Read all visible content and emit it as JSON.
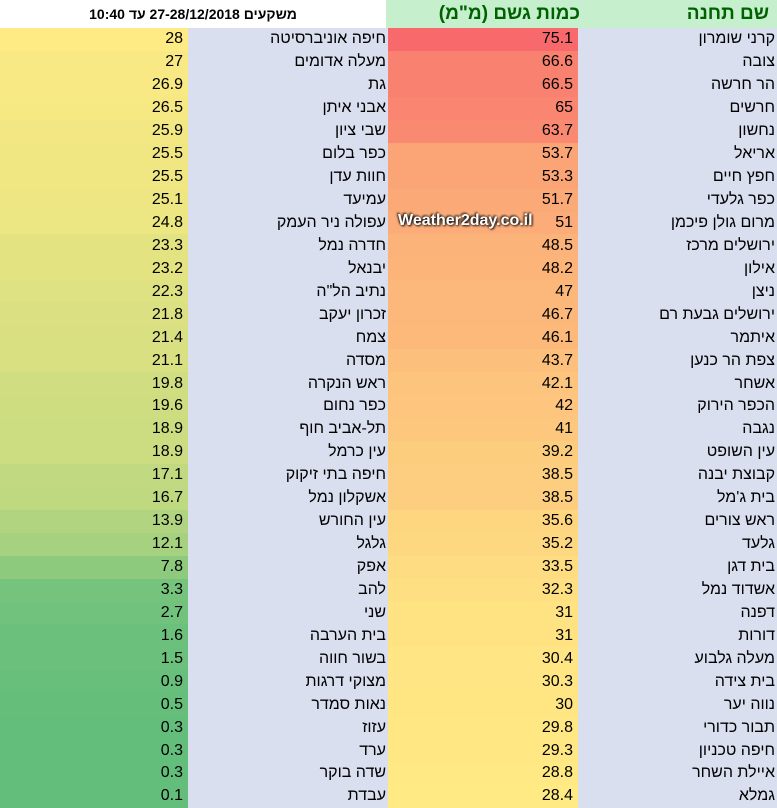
{
  "title": "משקעים 27-28/12/2018 עד 10:40",
  "header": {
    "station": "שם תחנה",
    "rain": "כמות גשם (מ\"מ)"
  },
  "watermark": "Weather2day.co.il",
  "colors": {
    "high": "#f8696b",
    "mid": "#ffeb84",
    "low": "#63be7b",
    "header_bg": "#c6efce",
    "header_text": "#006100",
    "name_bg": "#dadff0"
  },
  "right_table": [
    {
      "name": "קרני שומרון",
      "value": 75.1
    },
    {
      "name": "צובה",
      "value": 66.6
    },
    {
      "name": "הר חרשה",
      "value": 66.5
    },
    {
      "name": "חרשים",
      "value": 65
    },
    {
      "name": "נחשון",
      "value": 63.7
    },
    {
      "name": "אריאל",
      "value": 53.7
    },
    {
      "name": "חפץ חיים",
      "value": 53.3
    },
    {
      "name": "כפר גלעדי",
      "value": 51.7
    },
    {
      "name": "מרום גולן פיכמן",
      "value": 51
    },
    {
      "name": "ירושלים מרכז",
      "value": 48.5
    },
    {
      "name": "אילון",
      "value": 48.2
    },
    {
      "name": "ניצן",
      "value": 47
    },
    {
      "name": "ירושלים גבעת רם",
      "value": 46.7
    },
    {
      "name": "איתמר",
      "value": 46.1
    },
    {
      "name": "צפת הר כנען",
      "value": 43.7
    },
    {
      "name": "אשחר",
      "value": 42.1
    },
    {
      "name": "הכפר הירוק",
      "value": 42
    },
    {
      "name": "נגבה",
      "value": 41
    },
    {
      "name": "עין השופט",
      "value": 39.2
    },
    {
      "name": "קבוצת יבנה",
      "value": 38.5
    },
    {
      "name": "בית ג'מל",
      "value": 38.5
    },
    {
      "name": "ראש צורים",
      "value": 35.6
    },
    {
      "name": "גלעד",
      "value": 35.2
    },
    {
      "name": "בית דגן",
      "value": 33.5
    },
    {
      "name": "אשדוד נמל",
      "value": 32.3
    },
    {
      "name": "דפנה",
      "value": 31
    },
    {
      "name": "דורות",
      "value": 31
    },
    {
      "name": "מעלה גלבוע",
      "value": 30.4
    },
    {
      "name": "בית צידה",
      "value": 30.3
    },
    {
      "name": "נווה יער",
      "value": 30
    },
    {
      "name": "תבור כדורי",
      "value": 29.8
    },
    {
      "name": "חיפה טכניון",
      "value": 29.3
    },
    {
      "name": "איילת השחר",
      "value": 28.8
    },
    {
      "name": "גמלא",
      "value": 28.4
    }
  ],
  "left_table": [
    {
      "name": "חיפה אוניברסיטה",
      "value": 28
    },
    {
      "name": "מעלה אדומים",
      "value": 27
    },
    {
      "name": "גת",
      "value": 26.9
    },
    {
      "name": "אבני איתן",
      "value": 26.5
    },
    {
      "name": "שבי ציון",
      "value": 25.9
    },
    {
      "name": "כפר בלום",
      "value": 25.5
    },
    {
      "name": "חוות עדן",
      "value": 25.5
    },
    {
      "name": "עמיעד",
      "value": 25.1
    },
    {
      "name": "עפולה ניר העמק",
      "value": 24.8
    },
    {
      "name": "חדרה נמל",
      "value": 23.3
    },
    {
      "name": "יבנאל",
      "value": 23.2
    },
    {
      "name": "נתיב הל\"ה",
      "value": 22.3
    },
    {
      "name": "זכרון יעקב",
      "value": 21.8
    },
    {
      "name": "צמח",
      "value": 21.4
    },
    {
      "name": "מסדה",
      "value": 21.1
    },
    {
      "name": "ראש הנקרה",
      "value": 19.8
    },
    {
      "name": "כפר נחום",
      "value": 19.6
    },
    {
      "name": "תל-אביב חוף",
      "value": 18.9
    },
    {
      "name": "עין כרמל",
      "value": 18.9
    },
    {
      "name": "חיפה בתי זיקוק",
      "value": 17.1
    },
    {
      "name": "אשקלון נמל",
      "value": 16.7
    },
    {
      "name": "עין החורש",
      "value": 13.9
    },
    {
      "name": "גלגל",
      "value": 12.1
    },
    {
      "name": "אפק",
      "value": 7.8
    },
    {
      "name": "להב",
      "value": 3.3
    },
    {
      "name": "שני",
      "value": 2.7
    },
    {
      "name": "בית הערבה",
      "value": 1.6
    },
    {
      "name": "בשור חווה",
      "value": 1.5
    },
    {
      "name": "מצוקי דרגות",
      "value": 0.9
    },
    {
      "name": "נאות סמדר",
      "value": 0.5
    },
    {
      "name": "עזוז",
      "value": 0.3
    },
    {
      "name": "ערד",
      "value": 0.3
    },
    {
      "name": "שדה בוקר",
      "value": 0.3
    },
    {
      "name": "עבדת",
      "value": 0.1
    }
  ]
}
